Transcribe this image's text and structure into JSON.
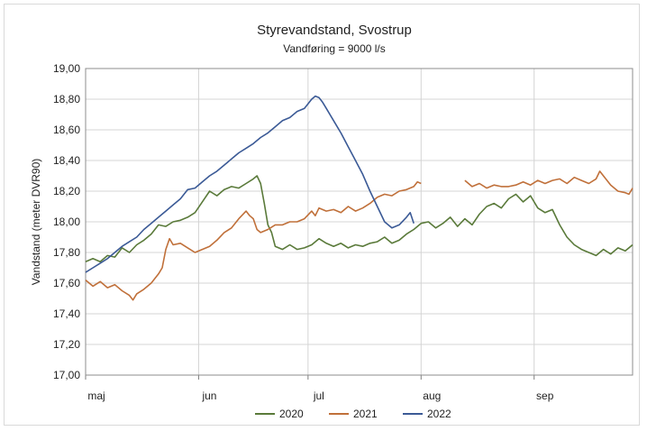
{
  "chart_data": {
    "type": "line",
    "title": "Styrevandstand, Svostrup",
    "subtitle": "Vandføring = 9000 l/s",
    "ylabel": "Vandstand (meter DVR90)",
    "xlabel": "",
    "ylim": [
      17.0,
      19.0
    ],
    "yticks": [
      "17,00",
      "17,20",
      "17,40",
      "17,60",
      "17,80",
      "18,00",
      "18,20",
      "18,40",
      "18,60",
      "18,80",
      "19,00"
    ],
    "xlim": [
      0,
      150
    ],
    "xticks": [
      {
        "label": "maj",
        "x": 0
      },
      {
        "label": "jun",
        "x": 31
      },
      {
        "label": "jul",
        "x": 61
      },
      {
        "label": "aug",
        "x": 92
      },
      {
        "label": "sep",
        "x": 123
      }
    ],
    "grid": true,
    "legend_position": "bottom",
    "series": [
      {
        "name": "2020",
        "color": "#5a7a3a",
        "points": [
          [
            0,
            17.74
          ],
          [
            2,
            17.76
          ],
          [
            4,
            17.74
          ],
          [
            6,
            17.78
          ],
          [
            8,
            17.77
          ],
          [
            10,
            17.83
          ],
          [
            12,
            17.8
          ],
          [
            14,
            17.85
          ],
          [
            16,
            17.88
          ],
          [
            18,
            17.92
          ],
          [
            20,
            17.98
          ],
          [
            22,
            17.97
          ],
          [
            24,
            18.0
          ],
          [
            26,
            18.01
          ],
          [
            28,
            18.03
          ],
          [
            30,
            18.06
          ],
          [
            32,
            18.13
          ],
          [
            34,
            18.2
          ],
          [
            36,
            18.17
          ],
          [
            38,
            18.21
          ],
          [
            40,
            18.23
          ],
          [
            42,
            18.22
          ],
          [
            44,
            18.25
          ],
          [
            46,
            18.28
          ],
          [
            47,
            18.3
          ],
          [
            48,
            18.25
          ],
          [
            49,
            18.12
          ],
          [
            50,
            17.98
          ],
          [
            51,
            17.93
          ],
          [
            52,
            17.84
          ],
          [
            54,
            17.82
          ],
          [
            56,
            17.85
          ],
          [
            58,
            17.82
          ],
          [
            60,
            17.83
          ],
          [
            62,
            17.85
          ],
          [
            64,
            17.89
          ],
          [
            66,
            17.86
          ],
          [
            68,
            17.84
          ],
          [
            70,
            17.86
          ],
          [
            72,
            17.83
          ],
          [
            74,
            17.85
          ],
          [
            76,
            17.84
          ],
          [
            78,
            17.86
          ],
          [
            80,
            17.87
          ],
          [
            82,
            17.9
          ],
          [
            84,
            17.86
          ],
          [
            86,
            17.88
          ],
          [
            88,
            17.92
          ],
          [
            90,
            17.95
          ],
          [
            92,
            17.99
          ],
          [
            94,
            18.0
          ],
          [
            96,
            17.96
          ],
          [
            98,
            17.99
          ],
          [
            100,
            18.03
          ],
          [
            102,
            17.97
          ],
          [
            104,
            18.02
          ],
          [
            106,
            17.98
          ],
          [
            108,
            18.05
          ],
          [
            110,
            18.1
          ],
          [
            112,
            18.12
          ],
          [
            114,
            18.09
          ],
          [
            116,
            18.15
          ],
          [
            118,
            18.18
          ],
          [
            120,
            18.13
          ],
          [
            122,
            18.17
          ],
          [
            124,
            18.09
          ],
          [
            126,
            18.06
          ],
          [
            128,
            18.08
          ],
          [
            130,
            17.98
          ],
          [
            132,
            17.9
          ],
          [
            134,
            17.85
          ],
          [
            136,
            17.82
          ],
          [
            138,
            17.8
          ],
          [
            140,
            17.78
          ],
          [
            142,
            17.82
          ],
          [
            144,
            17.79
          ],
          [
            146,
            17.83
          ],
          [
            148,
            17.81
          ],
          [
            150,
            17.85
          ]
        ]
      },
      {
        "name": "2021",
        "color": "#c0703a",
        "segments": [
          [
            [
              0,
              17.62
            ],
            [
              2,
              17.58
            ],
            [
              4,
              17.61
            ],
            [
              6,
              17.57
            ],
            [
              8,
              17.59
            ],
            [
              10,
              17.55
            ],
            [
              12,
              17.52
            ],
            [
              13,
              17.49
            ],
            [
              14,
              17.53
            ],
            [
              16,
              17.56
            ],
            [
              18,
              17.6
            ],
            [
              20,
              17.66
            ],
            [
              21,
              17.7
            ],
            [
              22,
              17.82
            ],
            [
              23,
              17.89
            ],
            [
              24,
              17.85
            ],
            [
              26,
              17.86
            ],
            [
              28,
              17.83
            ],
            [
              30,
              17.8
            ],
            [
              32,
              17.82
            ],
            [
              34,
              17.84
            ],
            [
              36,
              17.88
            ],
            [
              38,
              17.93
            ],
            [
              40,
              17.96
            ],
            [
              42,
              18.02
            ],
            [
              44,
              18.07
            ],
            [
              45,
              18.04
            ],
            [
              46,
              18.02
            ],
            [
              47,
              17.95
            ],
            [
              48,
              17.93
            ],
            [
              50,
              17.95
            ],
            [
              52,
              17.98
            ],
            [
              54,
              17.98
            ],
            [
              56,
              18.0
            ],
            [
              58,
              18.0
            ],
            [
              60,
              18.02
            ],
            [
              62,
              18.07
            ],
            [
              63,
              18.04
            ],
            [
              64,
              18.09
            ],
            [
              66,
              18.07
            ],
            [
              68,
              18.08
            ],
            [
              70,
              18.06
            ],
            [
              72,
              18.1
            ],
            [
              74,
              18.07
            ],
            [
              76,
              18.09
            ],
            [
              78,
              18.12
            ],
            [
              80,
              18.16
            ],
            [
              82,
              18.18
            ],
            [
              84,
              18.17
            ],
            [
              86,
              18.2
            ],
            [
              88,
              18.21
            ],
            [
              90,
              18.23
            ],
            [
              91,
              18.26
            ],
            [
              92,
              18.25
            ]
          ],
          [
            [
              104,
              18.27
            ],
            [
              106,
              18.23
            ],
            [
              108,
              18.25
            ],
            [
              110,
              18.22
            ],
            [
              112,
              18.24
            ],
            [
              114,
              18.23
            ],
            [
              116,
              18.23
            ],
            [
              118,
              18.24
            ],
            [
              120,
              18.26
            ],
            [
              122,
              18.24
            ],
            [
              124,
              18.27
            ],
            [
              126,
              18.25
            ],
            [
              128,
              18.27
            ],
            [
              130,
              18.28
            ],
            [
              132,
              18.25
            ],
            [
              134,
              18.29
            ],
            [
              136,
              18.27
            ],
            [
              138,
              18.25
            ],
            [
              140,
              18.28
            ],
            [
              141,
              18.33
            ],
            [
              142,
              18.3
            ],
            [
              144,
              18.24
            ],
            [
              146,
              18.2
            ],
            [
              148,
              18.19
            ],
            [
              149,
              18.18
            ],
            [
              150,
              18.22
            ]
          ]
        ]
      },
      {
        "name": "2022",
        "color": "#3b5a96",
        "points": [
          [
            0,
            17.67
          ],
          [
            2,
            17.7
          ],
          [
            4,
            17.73
          ],
          [
            6,
            17.76
          ],
          [
            8,
            17.8
          ],
          [
            10,
            17.84
          ],
          [
            12,
            17.87
          ],
          [
            14,
            17.9
          ],
          [
            16,
            17.95
          ],
          [
            18,
            17.99
          ],
          [
            20,
            18.03
          ],
          [
            22,
            18.07
          ],
          [
            24,
            18.11
          ],
          [
            26,
            18.15
          ],
          [
            28,
            18.21
          ],
          [
            30,
            18.22
          ],
          [
            32,
            18.26
          ],
          [
            34,
            18.3
          ],
          [
            36,
            18.33
          ],
          [
            38,
            18.37
          ],
          [
            40,
            18.41
          ],
          [
            42,
            18.45
          ],
          [
            44,
            18.48
          ],
          [
            46,
            18.51
          ],
          [
            48,
            18.55
          ],
          [
            50,
            18.58
          ],
          [
            52,
            18.62
          ],
          [
            54,
            18.66
          ],
          [
            56,
            18.68
          ],
          [
            58,
            18.72
          ],
          [
            60,
            18.74
          ],
          [
            62,
            18.8
          ],
          [
            63,
            18.82
          ],
          [
            64,
            18.81
          ],
          [
            65,
            18.78
          ],
          [
            66,
            18.74
          ],
          [
            68,
            18.66
          ],
          [
            70,
            18.58
          ],
          [
            72,
            18.49
          ],
          [
            74,
            18.4
          ],
          [
            76,
            18.31
          ],
          [
            78,
            18.2
          ],
          [
            80,
            18.1
          ],
          [
            82,
            18.0
          ],
          [
            84,
            17.96
          ],
          [
            86,
            17.98
          ],
          [
            88,
            18.03
          ],
          [
            89,
            18.06
          ],
          [
            90,
            17.99
          ]
        ]
      }
    ]
  }
}
